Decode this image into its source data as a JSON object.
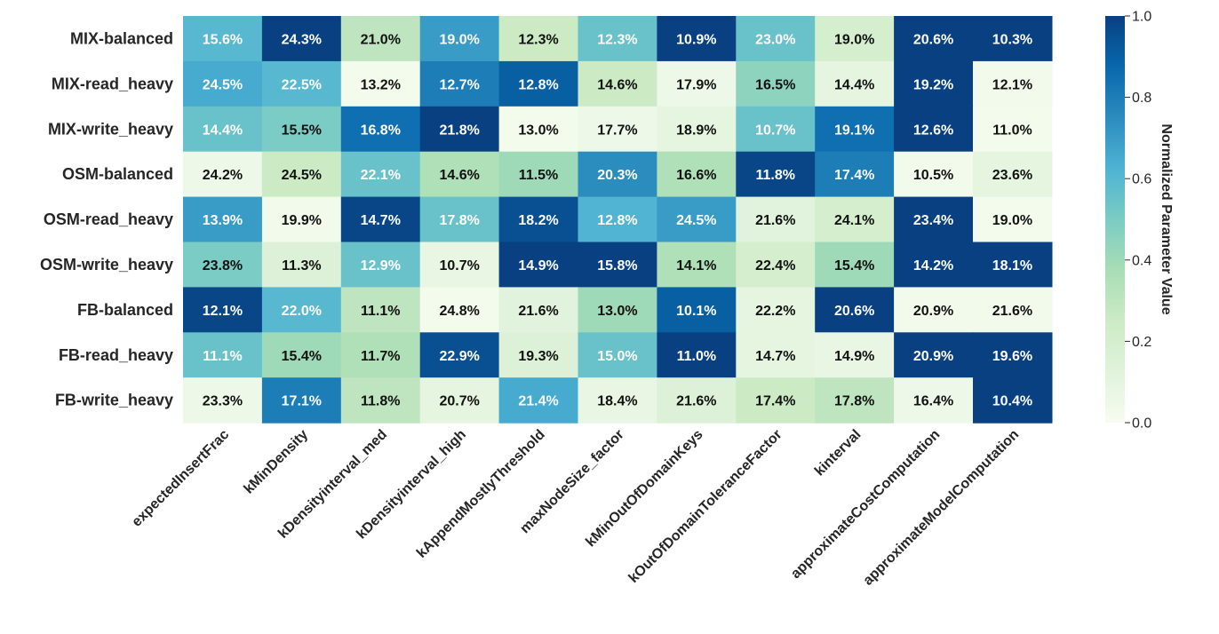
{
  "chart_data": {
    "type": "heatmap",
    "rows": [
      "MIX-balanced",
      "MIX-read_heavy",
      "MIX-write_heavy",
      "OSM-balanced",
      "OSM-read_heavy",
      "OSM-write_heavy",
      "FB-balanced",
      "FB-read_heavy",
      "FB-write_heavy"
    ],
    "columns": [
      "expectedInsertFrac",
      "kMinDensity",
      "kDensityinterval_med",
      "kDensityinterval_high",
      "kAppendMostlyThreshold",
      "maxNodeSize_factor",
      "kMinOutOfDomainKeys",
      "kOutOfDomainToleranceFactor",
      "kinterval",
      "approximateCostComputation",
      "approximateModelComputation"
    ],
    "annotations": [
      [
        "15.6%",
        "24.3%",
        "21.0%",
        "19.0%",
        "12.3%",
        "12.3%",
        "10.9%",
        "23.0%",
        "19.0%",
        "20.6%",
        "10.3%"
      ],
      [
        "24.5%",
        "22.5%",
        "13.2%",
        "12.7%",
        "12.8%",
        "14.6%",
        "17.9%",
        "16.5%",
        "14.4%",
        "19.2%",
        "12.1%"
      ],
      [
        "14.4%",
        "15.5%",
        "16.8%",
        "21.8%",
        "13.0%",
        "17.7%",
        "18.9%",
        "10.7%",
        "19.1%",
        "12.6%",
        "11.0%"
      ],
      [
        "24.2%",
        "24.5%",
        "22.1%",
        "14.6%",
        "11.5%",
        "20.3%",
        "16.6%",
        "11.8%",
        "17.4%",
        "10.5%",
        "23.6%"
      ],
      [
        "13.9%",
        "19.9%",
        "14.7%",
        "17.8%",
        "18.2%",
        "12.8%",
        "24.5%",
        "21.6%",
        "24.1%",
        "23.4%",
        "19.0%"
      ],
      [
        "23.8%",
        "11.3%",
        "12.9%",
        "10.7%",
        "14.9%",
        "15.8%",
        "14.1%",
        "22.4%",
        "15.4%",
        "14.2%",
        "18.1%"
      ],
      [
        "12.1%",
        "22.0%",
        "11.1%",
        "24.8%",
        "21.6%",
        "13.0%",
        "10.1%",
        "22.2%",
        "20.6%",
        "20.9%",
        "21.6%"
      ],
      [
        "11.1%",
        "15.4%",
        "11.7%",
        "22.9%",
        "19.3%",
        "15.0%",
        "11.0%",
        "14.7%",
        "14.9%",
        "20.9%",
        "19.6%"
      ],
      [
        "23.3%",
        "17.1%",
        "11.8%",
        "20.7%",
        "21.4%",
        "18.4%",
        "21.6%",
        "17.4%",
        "17.8%",
        "16.4%",
        "10.4%"
      ]
    ],
    "values": [
      [
        0.6,
        1.0,
        0.3,
        0.7,
        0.25,
        0.55,
        1.0,
        0.55,
        0.2,
        1.0,
        1.0
      ],
      [
        0.65,
        0.6,
        0.02,
        0.8,
        0.9,
        0.25,
        0.05,
        0.45,
        0.1,
        1.0,
        0.03
      ],
      [
        0.55,
        0.5,
        0.85,
        1.0,
        0.02,
        0.05,
        0.1,
        0.55,
        0.85,
        1.0,
        0.02
      ],
      [
        0.05,
        0.25,
        0.55,
        0.35,
        0.4,
        0.75,
        0.35,
        0.98,
        0.8,
        0.03,
        0.1
      ],
      [
        0.7,
        0.03,
        0.98,
        0.55,
        0.95,
        0.62,
        0.7,
        0.12,
        0.2,
        1.0,
        0.02
      ],
      [
        0.5,
        0.15,
        0.55,
        0.08,
        1.0,
        1.0,
        0.35,
        0.2,
        0.4,
        1.0,
        1.0
      ],
      [
        0.98,
        0.6,
        0.3,
        0.02,
        0.12,
        0.4,
        0.9,
        0.1,
        1.0,
        0.03,
        0.03
      ],
      [
        0.55,
        0.4,
        0.35,
        0.95,
        0.15,
        0.55,
        1.0,
        0.1,
        0.08,
        1.0,
        1.0
      ],
      [
        0.05,
        0.8,
        0.3,
        0.1,
        0.65,
        0.08,
        0.15,
        0.25,
        0.3,
        0.05,
        1.0
      ]
    ],
    "colorbar": {
      "label": "Normalized Parameter Value",
      "range": [
        0.0,
        1.0
      ],
      "ticks": [
        "0.0",
        "0.2",
        "0.4",
        "0.6",
        "0.8",
        "1.0"
      ],
      "colormap": [
        "#f7fcf0",
        "#e0f3db",
        "#ccebc5",
        "#a8ddb5",
        "#7bccc4",
        "#4eb3d3",
        "#2b8cbe",
        "#0868ac",
        "#084081"
      ]
    }
  }
}
